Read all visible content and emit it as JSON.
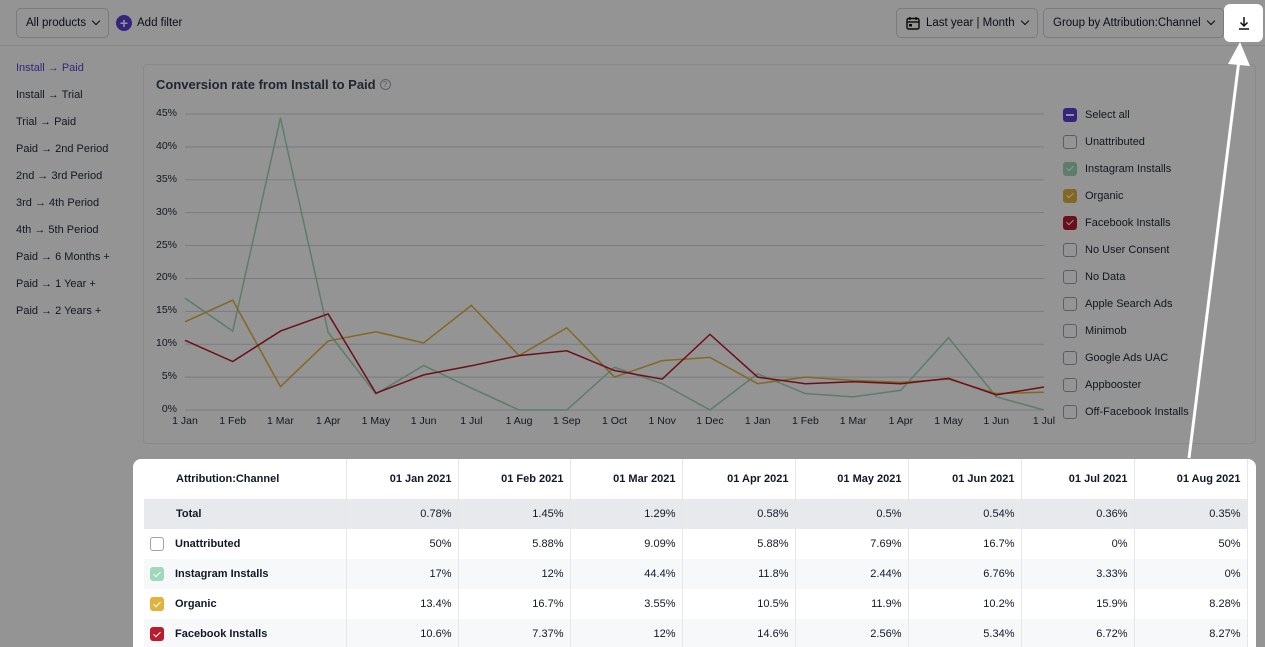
{
  "toolbar": {
    "products_label": "All products",
    "add_filter_label": "Add filter",
    "date_range_label": "Last year | Month",
    "group_by_label": "Group by Attribution:Channel"
  },
  "sidebar": {
    "items": [
      {
        "label": "Install → Paid",
        "active": true
      },
      {
        "label": "Install → Trial"
      },
      {
        "label": "Trial → Paid"
      },
      {
        "label": "Paid → 2nd Period"
      },
      {
        "label": "2nd → 3rd Period"
      },
      {
        "label": "3rd → 4th Period"
      },
      {
        "label": "4th → 5th Period"
      },
      {
        "label": "Paid → 6 Months +"
      },
      {
        "label": "Paid → 1 Year +"
      },
      {
        "label": "Paid → 2 Years +"
      }
    ]
  },
  "chart": {
    "title": "Conversion rate from Install to Paid",
    "help_icon": "?"
  },
  "chart_data": {
    "type": "line",
    "x": [
      "1 Jan",
      "1 Feb",
      "1 Mar",
      "1 Apr",
      "1 May",
      "1 Jun",
      "1 Jul",
      "1 Aug",
      "1 Sep",
      "1 Oct",
      "1 Nov",
      "1 Dec",
      "1 Jan",
      "1 Feb",
      "1 Mar",
      "1 Apr",
      "1 May",
      "1 Jun",
      "1 Jul"
    ],
    "y_ticks": [
      "45%",
      "40%",
      "35%",
      "30%",
      "25%",
      "20%",
      "15%",
      "10%",
      "5%",
      "0%"
    ],
    "ylim": [
      0,
      45
    ],
    "grid": true,
    "series": [
      {
        "name": "Instagram Installs",
        "color": "#9fd8bb",
        "values": [
          17,
          12,
          44.4,
          11.8,
          2.44,
          6.76,
          3.33,
          0,
          0,
          6.5,
          4,
          0,
          5.5,
          2.5,
          2,
          3,
          11,
          2,
          0
        ]
      },
      {
        "name": "Organic",
        "color": "#e0b43c",
        "values": [
          13.4,
          16.7,
          3.55,
          10.5,
          11.9,
          10.2,
          15.9,
          8.28,
          12.5,
          5,
          7.5,
          8,
          4,
          5,
          4.5,
          4.2,
          4.7,
          2.5,
          2.7
        ]
      },
      {
        "name": "Facebook Installs",
        "color": "#b91c2e",
        "values": [
          10.6,
          7.37,
          12,
          14.6,
          2.56,
          5.34,
          6.72,
          8.27,
          9,
          6,
          4.7,
          11.5,
          5,
          4,
          4.3,
          4,
          4.8,
          2.3,
          3.5
        ]
      }
    ]
  },
  "legend": {
    "items": [
      {
        "label": "Select all",
        "state": "indeterminate",
        "color": "#5b3fd6"
      },
      {
        "label": "Unattributed",
        "state": "off",
        "color": ""
      },
      {
        "label": "Instagram Installs",
        "state": "on",
        "color": "#9fd8bb"
      },
      {
        "label": "Organic",
        "state": "on",
        "color": "#e0b43c"
      },
      {
        "label": "Facebook Installs",
        "state": "on",
        "color": "#b91c2e"
      },
      {
        "label": "No User Consent",
        "state": "off",
        "color": ""
      },
      {
        "label": "No Data",
        "state": "off",
        "color": ""
      },
      {
        "label": "Apple Search Ads",
        "state": "off",
        "color": ""
      },
      {
        "label": "Minimob",
        "state": "off",
        "color": ""
      },
      {
        "label": "Google Ads UAC",
        "state": "off",
        "color": ""
      },
      {
        "label": "Appbooster",
        "state": "off",
        "color": ""
      },
      {
        "label": "Off-Facebook Installs",
        "state": "off",
        "color": ""
      }
    ]
  },
  "table": {
    "header": [
      "Attribution:Channel",
      "01 Jan 2021",
      "01 Feb 2021",
      "01 Mar 2021",
      "01 Apr 2021",
      "01 May 2021",
      "01 Jun 2021",
      "01 Jul 2021",
      "01 Aug 2021"
    ],
    "rows": [
      {
        "name": "Total",
        "checkbox": "none",
        "color": "",
        "values": [
          "0.78%",
          "1.45%",
          "1.29%",
          "0.58%",
          "0.5%",
          "0.54%",
          "0.36%",
          "0.35%"
        ]
      },
      {
        "name": "Unattributed",
        "checkbox": "off",
        "color": "",
        "values": [
          "50%",
          "5.88%",
          "9.09%",
          "5.88%",
          "7.69%",
          "16.7%",
          "0%",
          "50%"
        ]
      },
      {
        "name": "Instagram Installs",
        "checkbox": "on",
        "color": "#9fd8bb",
        "values": [
          "17%",
          "12%",
          "44.4%",
          "11.8%",
          "2.44%",
          "6.76%",
          "3.33%",
          "0%"
        ]
      },
      {
        "name": "Organic",
        "checkbox": "on",
        "color": "#e0b43c",
        "values": [
          "13.4%",
          "16.7%",
          "3.55%",
          "10.5%",
          "11.9%",
          "10.2%",
          "15.9%",
          "8.28%"
        ]
      },
      {
        "name": "Facebook Installs",
        "checkbox": "on",
        "color": "#b91c2e",
        "values": [
          "10.6%",
          "7.37%",
          "12%",
          "14.6%",
          "2.56%",
          "5.34%",
          "6.72%",
          "8.27%"
        ]
      }
    ]
  }
}
